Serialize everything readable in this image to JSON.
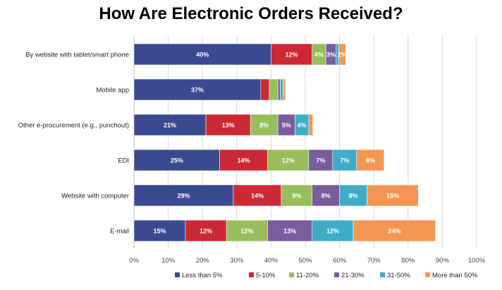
{
  "chart_data": {
    "type": "bar",
    "orientation": "horizontal",
    "stacked": true,
    "title": "How Are Electronic Orders Received?",
    "categories": [
      "By website with tablet/smart phone",
      "Mobile app",
      "Other e-procurement (e.g., punchout)",
      "EDI",
      "Website with computer",
      "E-mail"
    ],
    "series": [
      {
        "name": "Less than 5%",
        "color": "#3A4A91",
        "values": [
          40,
          37,
          21,
          25,
          29,
          15
        ],
        "labels": [
          "40%",
          "37%",
          "21%",
          "25%",
          "29%",
          "15%"
        ]
      },
      {
        "name": "5-10%",
        "color": "#CC2936",
        "values": [
          12,
          2.5,
          13,
          14,
          14,
          12
        ],
        "labels": [
          "12%",
          "",
          "13%",
          "14%",
          "14%",
          "12%"
        ]
      },
      {
        "name": "11-20%",
        "color": "#97BE5A",
        "values": [
          4,
          2.5,
          8,
          12,
          9,
          12
        ],
        "labels": [
          "4%",
          "",
          "8%",
          "12%",
          "9%",
          "12%"
        ]
      },
      {
        "name": "21-30%",
        "color": "#7A5C9C",
        "values": [
          3,
          0.7,
          5,
          7,
          8,
          13
        ],
        "labels": [
          "3%",
          "",
          "5%",
          "7%",
          "8%",
          "13%"
        ]
      },
      {
        "name": "31-50%",
        "color": "#3EACC6",
        "values": [
          0.8,
          0.8,
          4,
          7,
          8,
          12
        ],
        "labels": [
          "",
          "",
          "4%",
          "7%",
          "8%",
          "12%"
        ]
      },
      {
        "name": "More than 50%",
        "color": "#F39652",
        "values": [
          2,
          0.7,
          1.2,
          8,
          15,
          24
        ],
        "labels": [
          "2%",
          "",
          "",
          "8%",
          "15%",
          "24%"
        ]
      }
    ],
    "xlim": [
      0,
      100
    ],
    "xticks": [
      "0%",
      "10%",
      "20%",
      "30%",
      "40%",
      "50%",
      "60%",
      "70%",
      "80%",
      "90%",
      "100%"
    ],
    "grid": true,
    "legend": "bottom"
  }
}
